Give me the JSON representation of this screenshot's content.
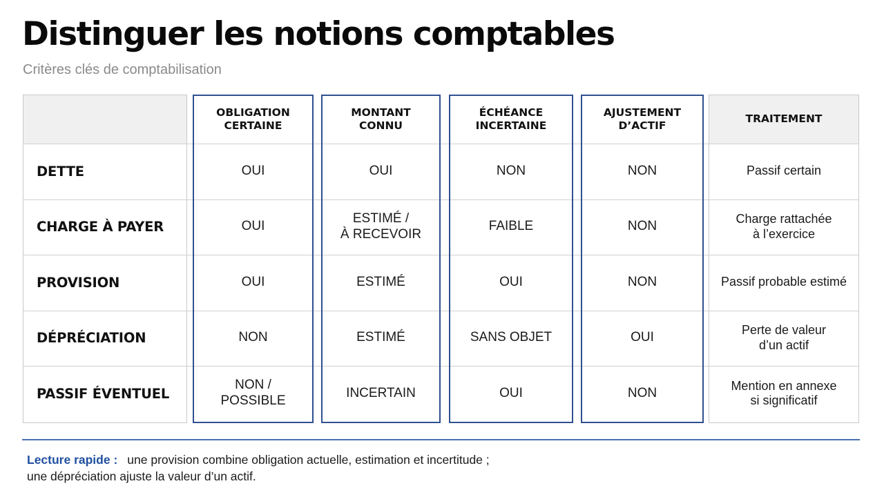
{
  "title": "Distinguer les notions comptables",
  "subtitle": "Critères clés de comptabilisation",
  "columns": [
    "OBLIGATION\nCERTAINE",
    "MONTANT\nCONNU",
    "ÉCHÉANCE\nINCERTAINE",
    "AJUSTEMENT\nD’ACTIF",
    "TRAITEMENT"
  ],
  "rows": [
    {
      "label": "DETTE",
      "values": [
        "OUI",
        "OUI",
        "NON",
        "NON"
      ],
      "treatment": "Passif certain"
    },
    {
      "label": "CHARGE À PAYER",
      "values": [
        "OUI",
        "ESTIMÉ /\nÀ RECEVOIR",
        "FAIBLE",
        "NON"
      ],
      "treatment": "Charge rattachée\nà l’exercice"
    },
    {
      "label": "PROVISION",
      "values": [
        "OUI",
        "ESTIMÉ",
        "OUI",
        "NON"
      ],
      "treatment": "Passif probable estimé"
    },
    {
      "label": "DÉPRÉCIATION",
      "values": [
        "NON",
        "ESTIMÉ",
        "SANS OBJET",
        "OUI"
      ],
      "treatment": "Perte de valeur\nd’un actif"
    },
    {
      "label": "PASSIF ÉVENTUEL",
      "values": [
        "NON /\nPOSSIBLE",
        "INCERTAIN",
        "OUI",
        "NON"
      ],
      "treatment": "Mention en annexe\nsi significatif"
    }
  ],
  "footer": {
    "lead": "Lecture rapide :",
    "line1": "une provision combine obligation actuelle, estimation et incertitude ;",
    "line2": "une dépréciation ajuste la valeur d’un actif."
  }
}
